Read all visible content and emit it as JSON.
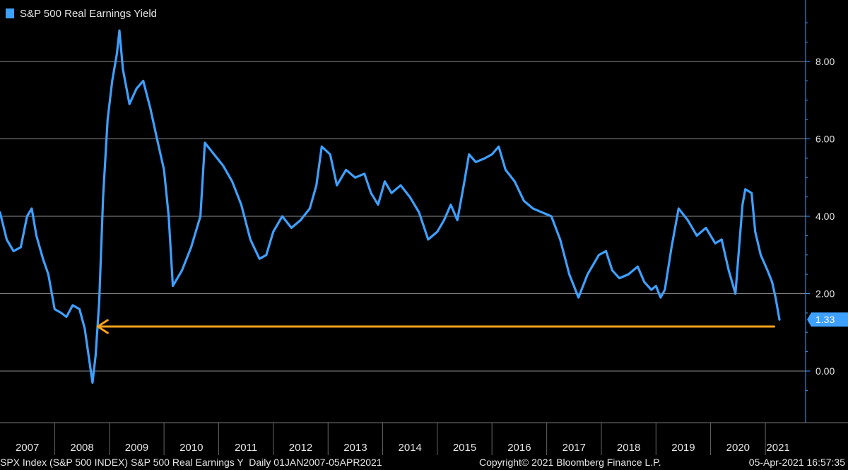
{
  "legend": {
    "label": "S&P 500 Real Earnings Yield"
  },
  "footer": {
    "left": "SPX Index (S&P 500 INDEX) S&P 500 Real Earnings Y  Daily 01JAN2007-05APR2021",
    "middle": "Copyright© 2021 Bloomberg Finance L.P.",
    "right": "05-Apr-2021 16:57:35"
  },
  "colors": {
    "background": "#000000",
    "line": "#3ea0ff",
    "grid": "#8c8c8c",
    "arrow": "#f7a21b",
    "text": "#e6e6e6"
  },
  "chart_data": {
    "type": "line",
    "title": "",
    "xlabel": "",
    "ylabel": "",
    "legend_position": "top-left",
    "y_axis_position": "right",
    "grid": true,
    "ylim": [
      -0.5,
      9.2
    ],
    "xlim": [
      "2007-01-01",
      "2021-04-05"
    ],
    "y_ticks": [
      "0.00",
      "2.00",
      "4.00",
      "6.00",
      "8.00"
    ],
    "x_tick_labels": [
      "2007",
      "2008",
      "2009",
      "2010",
      "2011",
      "2012",
      "2013",
      "2014",
      "2015",
      "2016",
      "2017",
      "2018",
      "2019",
      "2020",
      "2021"
    ],
    "last_value_label": "1.33",
    "series": [
      {
        "name": "S&P 500 Real Earnings Yield",
        "color": "#3ea0ff",
        "points": [
          [
            "2007-01-01",
            4.1
          ],
          [
            "2007-02-15",
            3.4
          ],
          [
            "2007-04-01",
            3.1
          ],
          [
            "2007-05-20",
            3.2
          ],
          [
            "2007-07-01",
            4.0
          ],
          [
            "2007-08-01",
            4.2
          ],
          [
            "2007-09-01",
            3.5
          ],
          [
            "2007-10-15",
            2.9
          ],
          [
            "2007-11-20",
            2.5
          ],
          [
            "2008-01-01",
            1.6
          ],
          [
            "2008-02-15",
            1.5
          ],
          [
            "2008-03-20",
            1.4
          ],
          [
            "2008-05-01",
            1.7
          ],
          [
            "2008-06-15",
            1.6
          ],
          [
            "2008-07-20",
            1.1
          ],
          [
            "2008-08-15",
            0.4
          ],
          [
            "2008-09-10",
            -0.3
          ],
          [
            "2008-10-01",
            0.4
          ],
          [
            "2008-10-25",
            1.8
          ],
          [
            "2008-11-20",
            4.5
          ],
          [
            "2008-12-20",
            6.5
          ],
          [
            "2009-01-20",
            7.5
          ],
          [
            "2009-02-20",
            8.2
          ],
          [
            "2009-03-09",
            8.8
          ],
          [
            "2009-04-01",
            7.8
          ],
          [
            "2009-05-15",
            6.9
          ],
          [
            "2009-07-01",
            7.3
          ],
          [
            "2009-08-15",
            7.5
          ],
          [
            "2009-10-01",
            6.8
          ],
          [
            "2009-11-15",
            6.0
          ],
          [
            "2010-01-01",
            5.2
          ],
          [
            "2010-02-01",
            4.0
          ],
          [
            "2010-03-01",
            2.2
          ],
          [
            "2010-05-01",
            2.6
          ],
          [
            "2010-07-01",
            3.2
          ],
          [
            "2010-09-01",
            4.0
          ],
          [
            "2010-10-01",
            5.9
          ],
          [
            "2010-12-01",
            5.6
          ],
          [
            "2011-02-01",
            5.3
          ],
          [
            "2011-04-01",
            4.9
          ],
          [
            "2011-06-01",
            4.3
          ],
          [
            "2011-08-01",
            3.4
          ],
          [
            "2011-10-01",
            2.9
          ],
          [
            "2011-11-15",
            3.0
          ],
          [
            "2012-01-01",
            3.6
          ],
          [
            "2012-03-01",
            4.0
          ],
          [
            "2012-05-01",
            3.7
          ],
          [
            "2012-07-01",
            3.9
          ],
          [
            "2012-09-01",
            4.2
          ],
          [
            "2012-10-15",
            4.8
          ],
          [
            "2012-11-20",
            5.8
          ],
          [
            "2013-01-15",
            5.6
          ],
          [
            "2013-03-01",
            4.8
          ],
          [
            "2013-05-01",
            5.2
          ],
          [
            "2013-07-01",
            5.0
          ],
          [
            "2013-09-01",
            5.1
          ],
          [
            "2013-10-15",
            4.6
          ],
          [
            "2013-12-01",
            4.3
          ],
          [
            "2014-01-15",
            4.9
          ],
          [
            "2014-03-01",
            4.6
          ],
          [
            "2014-05-01",
            4.8
          ],
          [
            "2014-07-01",
            4.5
          ],
          [
            "2014-09-01",
            4.1
          ],
          [
            "2014-11-01",
            3.4
          ],
          [
            "2015-01-01",
            3.6
          ],
          [
            "2015-02-15",
            3.9
          ],
          [
            "2015-04-01",
            4.3
          ],
          [
            "2015-05-15",
            3.9
          ],
          [
            "2015-07-01",
            4.9
          ],
          [
            "2015-08-01",
            5.6
          ],
          [
            "2015-09-15",
            5.4
          ],
          [
            "2015-11-15",
            5.5
          ],
          [
            "2016-01-01",
            5.6
          ],
          [
            "2016-02-15",
            5.8
          ],
          [
            "2016-04-01",
            5.2
          ],
          [
            "2016-06-01",
            4.9
          ],
          [
            "2016-08-01",
            4.4
          ],
          [
            "2016-10-01",
            4.2
          ],
          [
            "2016-12-01",
            4.1
          ],
          [
            "2017-02-01",
            4.0
          ],
          [
            "2017-04-01",
            3.4
          ],
          [
            "2017-06-01",
            2.5
          ],
          [
            "2017-08-01",
            1.9
          ],
          [
            "2017-10-01",
            2.5
          ],
          [
            "2017-12-15",
            3.0
          ],
          [
            "2018-02-01",
            3.1
          ],
          [
            "2018-03-15",
            2.6
          ],
          [
            "2018-05-01",
            2.4
          ],
          [
            "2018-07-01",
            2.5
          ],
          [
            "2018-09-01",
            2.7
          ],
          [
            "2018-10-15",
            2.3
          ],
          [
            "2018-12-01",
            2.1
          ],
          [
            "2019-01-01",
            2.2
          ],
          [
            "2019-02-01",
            1.9
          ],
          [
            "2019-03-01",
            2.1
          ],
          [
            "2019-04-15",
            3.2
          ],
          [
            "2019-06-01",
            4.2
          ],
          [
            "2019-08-01",
            3.9
          ],
          [
            "2019-10-01",
            3.5
          ],
          [
            "2019-12-01",
            3.7
          ],
          [
            "2020-02-01",
            3.3
          ],
          [
            "2020-03-15",
            3.4
          ],
          [
            "2020-05-01",
            2.6
          ],
          [
            "2020-06-15",
            2.0
          ],
          [
            "2020-08-01",
            4.3
          ],
          [
            "2020-08-20",
            4.7
          ],
          [
            "2020-10-01",
            4.6
          ],
          [
            "2020-10-25",
            3.6
          ],
          [
            "2020-12-01",
            3.0
          ],
          [
            "2021-01-15",
            2.6
          ],
          [
            "2021-02-15",
            2.3
          ],
          [
            "2021-03-10",
            1.9
          ],
          [
            "2021-04-05",
            1.33
          ]
        ]
      }
    ],
    "annotation": {
      "type": "arrow",
      "y": 1.15,
      "from": "2021-03-01",
      "to": "2008-10-15",
      "color": "#f7a21b"
    }
  }
}
